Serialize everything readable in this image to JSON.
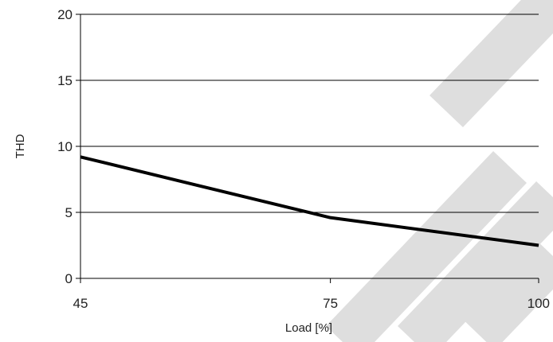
{
  "chart_data": {
    "type": "line",
    "title": "",
    "xlabel": "Load [%]",
    "ylabel": "THD",
    "xlim": [
      45,
      100
    ],
    "ylim": [
      0,
      20
    ],
    "x_ticks": [
      45,
      75,
      100
    ],
    "y_ticks": [
      0,
      5,
      10,
      15,
      20
    ],
    "grid": "horizontal",
    "series": [
      {
        "color": "#000000",
        "x": [
          45,
          75,
          100
        ],
        "values": [
          9.2,
          4.6,
          2.5
        ]
      }
    ]
  },
  "watermark": {
    "text": "SEE",
    "color": "#dedede"
  }
}
